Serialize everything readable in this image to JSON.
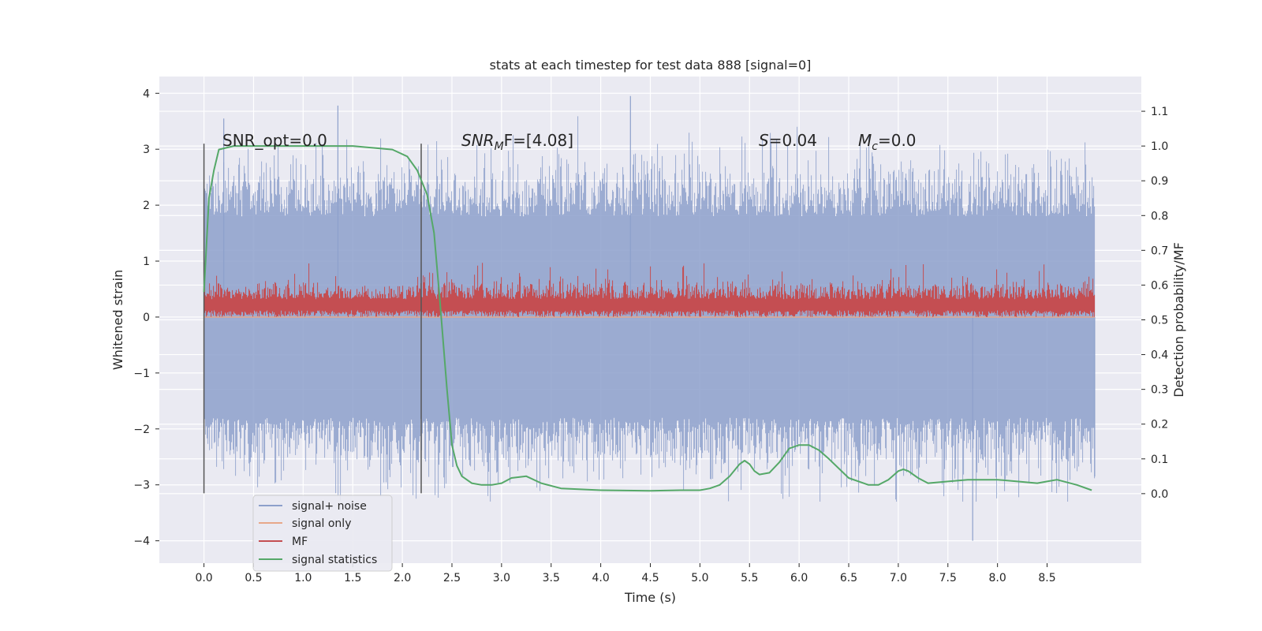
{
  "chart_data": {
    "type": "line",
    "title": "stats at each timestep for test data 888 [signal=0]",
    "xlabel": "Time (s)",
    "ylabel": "Whitened strain",
    "ylabel_right": "Detection probability/MF",
    "xlim": [
      -0.45,
      9.45
    ],
    "ylim": [
      -4.4,
      4.3
    ],
    "ylim_right": [
      -0.2,
      1.2
    ],
    "x_ticks": [
      0.0,
      0.5,
      1.0,
      1.5,
      2.0,
      2.5,
      3.0,
      3.5,
      4.0,
      4.5,
      5.0,
      5.5,
      6.0,
      6.5,
      7.0,
      7.5,
      8.0,
      8.5
    ],
    "x_tick_labels": [
      "0.0",
      "0.5",
      "1.0",
      "1.5",
      "2.0",
      "2.5",
      "3.0",
      "3.5",
      "4.0",
      "4.5",
      "5.0",
      "5.5",
      "6.0",
      "6.5",
      "7.0",
      "7.5",
      "8.0",
      "8.5"
    ],
    "y_ticks": [
      -4,
      -3,
      -2,
      -1,
      0,
      1,
      2,
      3,
      4
    ],
    "y_tick_labels": [
      "−4",
      "−3",
      "−2",
      "−1",
      "0",
      "1",
      "2",
      "3",
      "4"
    ],
    "y_right_ticks": [
      0.0,
      0.1,
      0.2,
      0.3,
      0.4,
      0.5,
      0.6,
      0.7,
      0.8,
      0.9,
      1.0,
      1.1
    ],
    "y_right_tick_labels": [
      "0.0",
      "0.1",
      "0.2",
      "0.3",
      "0.4",
      "0.5",
      "0.6",
      "0.7",
      "0.8",
      "0.9",
      "1.0",
      "1.1"
    ],
    "grid": true,
    "legend_position": "lower-left",
    "annotations": [
      "SNR_opt=0.0",
      "SNR",
      "M",
      "F=[4.08]",
      "S",
      "=0.04",
      "M",
      "c",
      "=0.0"
    ],
    "vertical_markers_x": [
      0.0,
      2.19
    ],
    "series": [
      {
        "name": "signal+ noise",
        "color": "#8da0cb",
        "axis": "left",
        "x_range": [
          0.0,
          8.98
        ],
        "amplitude_envelope": [
          -3.3,
          3.9
        ],
        "description_points": {
          "x": [
            0.2,
            1.35,
            4.3,
            7.75,
            8.98
          ],
          "y": [
            3.55,
            3.78,
            3.95,
            -4.0,
            -2.85
          ]
        }
      },
      {
        "name": "signal only",
        "color": "#e8a88a",
        "axis": "left",
        "x": [
          0.0,
          8.98
        ],
        "y": [
          0.0,
          0.0
        ]
      },
      {
        "name": "MF",
        "color": "#c44e52",
        "axis": "left",
        "x_range": [
          0.0,
          8.98
        ],
        "y_band": [
          0.0,
          0.6
        ],
        "y_max": 1.0
      },
      {
        "name": "signal statistics",
        "color": "#55a868",
        "axis": "right",
        "x": [
          0.0,
          0.05,
          0.1,
          0.15,
          0.3,
          0.6,
          1.0,
          1.5,
          1.9,
          2.05,
          2.15,
          2.25,
          2.32,
          2.38,
          2.45,
          2.5,
          2.55,
          2.6,
          2.7,
          2.8,
          2.9,
          3.0,
          3.1,
          3.25,
          3.4,
          3.6,
          4.0,
          4.5,
          4.8,
          5.0,
          5.1,
          5.2,
          5.3,
          5.4,
          5.45,
          5.5,
          5.55,
          5.6,
          5.7,
          5.8,
          5.9,
          6.0,
          6.1,
          6.2,
          6.3,
          6.5,
          6.7,
          6.8,
          6.9,
          7.0,
          7.05,
          7.1,
          7.2,
          7.3,
          7.5,
          7.7,
          8.0,
          8.2,
          8.4,
          8.5,
          8.6,
          8.8,
          8.95
        ],
        "y": [
          0.58,
          0.85,
          0.93,
          0.99,
          1.0,
          1.0,
          1.0,
          1.0,
          0.99,
          0.97,
          0.93,
          0.86,
          0.75,
          0.55,
          0.3,
          0.14,
          0.08,
          0.05,
          0.03,
          0.025,
          0.025,
          0.03,
          0.045,
          0.05,
          0.03,
          0.015,
          0.01,
          0.008,
          0.01,
          0.01,
          0.015,
          0.025,
          0.05,
          0.085,
          0.095,
          0.085,
          0.065,
          0.055,
          0.06,
          0.09,
          0.13,
          0.14,
          0.14,
          0.125,
          0.1,
          0.045,
          0.025,
          0.025,
          0.04,
          0.065,
          0.07,
          0.065,
          0.045,
          0.03,
          0.035,
          0.04,
          0.04,
          0.035,
          0.03,
          0.035,
          0.04,
          0.025,
          0.01
        ]
      }
    ]
  }
}
